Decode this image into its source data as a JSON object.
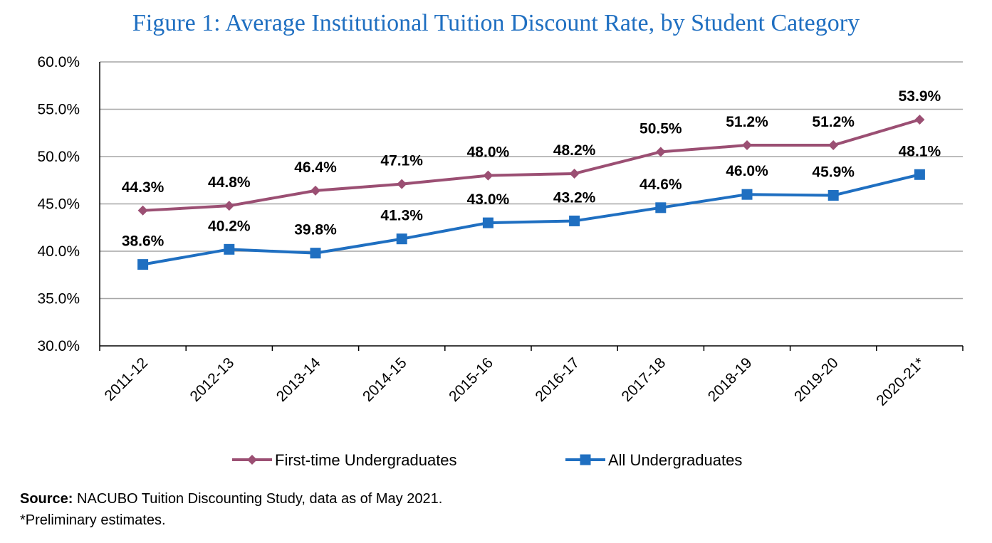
{
  "chart_data": {
    "type": "line",
    "title": "Figure 1: Average Institutional Tuition Discount Rate, by Student Category",
    "categories": [
      "2011-12",
      "2012-13",
      "2013-14",
      "2014-15",
      "2015-16",
      "2016-17",
      "2017-18",
      "2018-19",
      "2019-20",
      "2020-21*"
    ],
    "series": [
      {
        "name": "First-time Undergraduates",
        "color": "#9b4f73",
        "marker": "diamond",
        "values": [
          44.3,
          44.8,
          46.4,
          47.1,
          48.0,
          48.2,
          50.5,
          51.2,
          51.2,
          53.9
        ]
      },
      {
        "name": "All Undergraduates",
        "color": "#1f6fc1",
        "marker": "square",
        "values": [
          38.6,
          40.2,
          39.8,
          41.3,
          43.0,
          43.2,
          44.6,
          46.0,
          45.9,
          48.1
        ]
      }
    ],
    "ylim": [
      30,
      60
    ],
    "yticks": [
      "30.0%",
      "35.0%",
      "40.0%",
      "45.0%",
      "50.0%",
      "55.0%",
      "60.0%"
    ],
    "grid": true,
    "legend": "bottom"
  },
  "footnote": {
    "source_label": "Source:",
    "source_text": " NACUBO Tuition Discounting Study, data as of May 2021.",
    "note": "*Preliminary estimates."
  }
}
